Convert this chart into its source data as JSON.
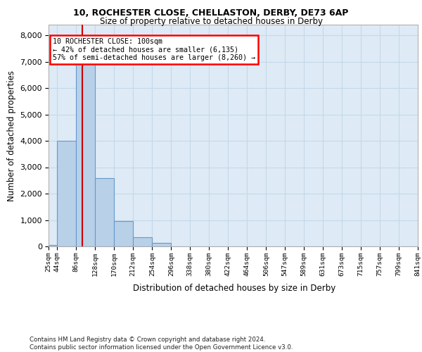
{
  "title1": "10, ROCHESTER CLOSE, CHELLASTON, DERBY, DE73 6AP",
  "title2": "Size of property relative to detached houses in Derby",
  "xlabel": "Distribution of detached houses by size in Derby",
  "ylabel": "Number of detached properties",
  "footer": "Contains HM Land Registry data © Crown copyright and database right 2024.\nContains public sector information licensed under the Open Government Licence v3.0.",
  "annotation_line1": "10 ROCHESTER CLOSE: 100sqm",
  "annotation_line2": "← 42% of detached houses are smaller (6,135)",
  "annotation_line3": "57% of semi-detached houses are larger (8,260) →",
  "bar_color": "#b8d0e8",
  "bar_edge_color": "#6699cc",
  "grid_color": "#c5d8ea",
  "background_color": "#deeaf5",
  "property_line_x": 100,
  "property_line_color": "#cc0000",
  "bin_edges": [
    25,
    44,
    86,
    128,
    170,
    212,
    254,
    296,
    338,
    380,
    422,
    464,
    506,
    547,
    589,
    631,
    673,
    715,
    757,
    799,
    841
  ],
  "bar_heights": [
    50,
    4000,
    7200,
    2600,
    950,
    350,
    130,
    0,
    0,
    0,
    0,
    0,
    0,
    0,
    0,
    0,
    0,
    0,
    0,
    0
  ],
  "ylim": [
    0,
    8400
  ],
  "yticks": [
    0,
    1000,
    2000,
    3000,
    4000,
    5000,
    6000,
    7000,
    8000
  ]
}
